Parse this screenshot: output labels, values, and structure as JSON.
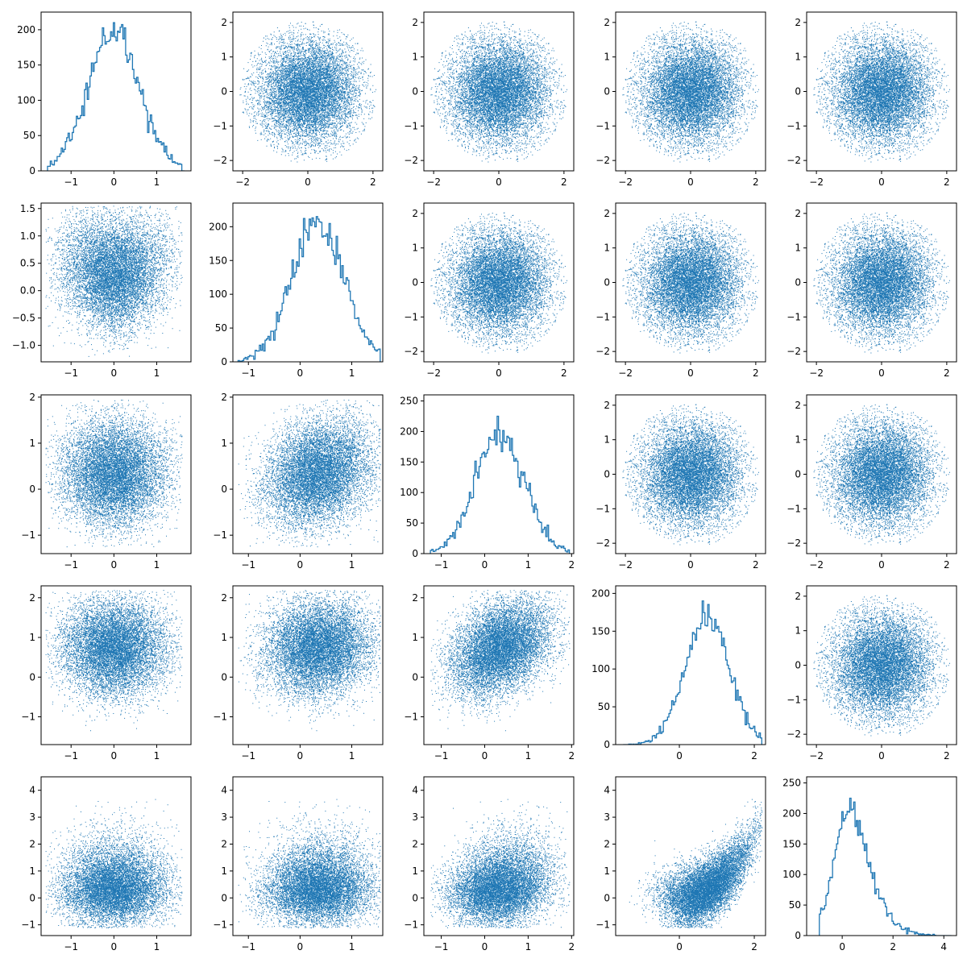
{
  "chart_data": {
    "type": "scatter",
    "layout": "pair-grid",
    "rows": 5,
    "cols": 5,
    "title": "",
    "grid": false,
    "series_color": "#1f77b4",
    "diagonal_type": "histogram (step)",
    "offdiagonal_type": "scatter",
    "points_per_panel": 10000,
    "variables": [
      {
        "index": 0,
        "range": [
          -1.7,
          1.8
        ],
        "ticks": [
          -1,
          0,
          1
        ]
      },
      {
        "index": 1,
        "range": [
          -1.3,
          1.6
        ],
        "ticks": [
          -1,
          0,
          1
        ]
      },
      {
        "index": 2,
        "range": [
          -1.4,
          2.05
        ],
        "ticks": [
          -1,
          0,
          1,
          2
        ]
      },
      {
        "index": 3,
        "range": [
          -1.7,
          2.3
        ],
        "ticks": [
          0,
          2
        ]
      },
      {
        "index": 4,
        "range": [
          -1.4,
          4.5
        ],
        "ticks": [
          0,
          2,
          4
        ]
      }
    ],
    "unconstrained_axis": {
      "range": [
        -2.3,
        2.3
      ],
      "ticks": [
        -2,
        -1,
        0,
        1,
        2
      ],
      "xticks": [
        -2,
        0,
        2
      ]
    },
    "histograms": [
      {
        "variable": 0,
        "ylim": [
          0,
          225
        ],
        "yticks": [
          0,
          50,
          100,
          150,
          200
        ],
        "shape": {
          "center": 0.0,
          "sd": 0.6,
          "peak": 210,
          "support": [
            -1.55,
            1.65
          ]
        }
      },
      {
        "variable": 1,
        "ylim": [
          0,
          235
        ],
        "yticks": [
          0,
          50,
          100,
          150,
          200
        ],
        "shape": {
          "center": 0.35,
          "sd": 0.55,
          "peak": 215,
          "support": [
            -1.2,
            1.55
          ]
        }
      },
      {
        "variable": 2,
        "ylim": [
          0,
          260
        ],
        "yticks": [
          0,
          50,
          100,
          150,
          200,
          250
        ],
        "shape": {
          "center": 0.35,
          "sd": 0.6,
          "peak": 225,
          "support": [
            -1.25,
            1.95
          ]
        }
      },
      {
        "variable": 3,
        "ylim": [
          0,
          210
        ],
        "yticks": [
          0,
          50,
          100,
          150,
          200
        ],
        "shape": {
          "center": 0.75,
          "sd": 0.65,
          "peak": 190,
          "support": [
            -1.5,
            2.2
          ]
        }
      },
      {
        "variable": 4,
        "ylim": [
          0,
          260
        ],
        "yticks": [
          0,
          50,
          100,
          150,
          200,
          250
        ],
        "shape": {
          "center": 0.9,
          "sd": 0.9,
          "peak": 225,
          "support": [
            -0.9,
            4.3
          ]
        }
      }
    ]
  }
}
